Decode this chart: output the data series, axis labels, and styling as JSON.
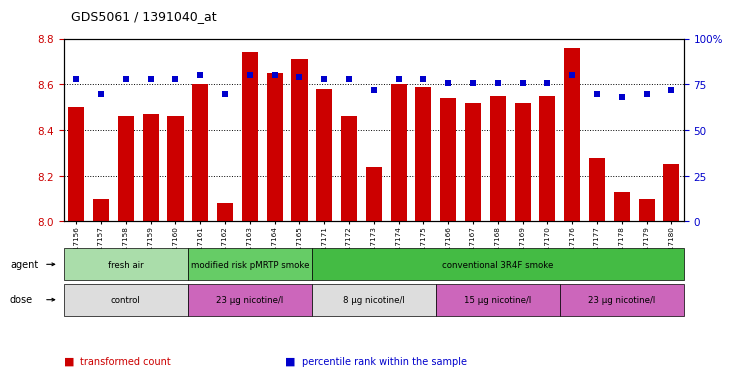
{
  "title": "GDS5061 / 1391040_at",
  "samples": [
    "GSM1217156",
    "GSM1217157",
    "GSM1217158",
    "GSM1217159",
    "GSM1217160",
    "GSM1217161",
    "GSM1217162",
    "GSM1217163",
    "GSM1217164",
    "GSM1217165",
    "GSM1217171",
    "GSM1217172",
    "GSM1217173",
    "GSM1217174",
    "GSM1217175",
    "GSM1217166",
    "GSM1217167",
    "GSM1217168",
    "GSM1217169",
    "GSM1217170",
    "GSM1217176",
    "GSM1217177",
    "GSM1217178",
    "GSM1217179",
    "GSM1217180"
  ],
  "bar_values": [
    8.5,
    8.1,
    8.46,
    8.47,
    8.46,
    8.6,
    8.08,
    8.74,
    8.65,
    8.71,
    8.58,
    8.46,
    8.24,
    8.6,
    8.59,
    8.54,
    8.52,
    8.55,
    8.52,
    8.55,
    8.76,
    8.28,
    8.13,
    8.1,
    8.25
  ],
  "percentile_values": [
    78,
    70,
    78,
    78,
    78,
    80,
    70,
    80,
    80,
    79,
    78,
    78,
    72,
    78,
    78,
    76,
    76,
    76,
    76,
    76,
    80,
    70,
    68,
    70,
    72
  ],
  "ylim_left": [
    8.0,
    8.8
  ],
  "ylim_right": [
    0,
    100
  ],
  "bar_color": "#cc0000",
  "dot_color": "#0000cc",
  "bg_color": "#ffffff",
  "title_color": "#000000",
  "left_tick_color": "#cc0000",
  "right_tick_color": "#0000cc",
  "agent_groups": [
    {
      "label": "fresh air",
      "start": 0,
      "end": 5,
      "color": "#aaddaa"
    },
    {
      "label": "modified risk pMRTP smoke",
      "start": 5,
      "end": 10,
      "color": "#66cc66"
    },
    {
      "label": "conventional 3R4F smoke",
      "start": 10,
      "end": 25,
      "color": "#44bb44"
    }
  ],
  "dose_groups": [
    {
      "label": "control",
      "start": 0,
      "end": 5,
      "color": "#dddddd"
    },
    {
      "label": "23 µg nicotine/l",
      "start": 5,
      "end": 10,
      "color": "#cc66bb"
    },
    {
      "label": "8 µg nicotine/l",
      "start": 10,
      "end": 15,
      "color": "#dddddd"
    },
    {
      "label": "15 µg nicotine/l",
      "start": 15,
      "end": 20,
      "color": "#cc66bb"
    },
    {
      "label": "23 µg nicotine/l",
      "start": 20,
      "end": 25,
      "color": "#cc66bb"
    }
  ],
  "legend_items": [
    {
      "label": "transformed count",
      "color": "#cc0000"
    },
    {
      "label": "percentile rank within the sample",
      "color": "#0000cc"
    }
  ],
  "left_ticks": [
    8.0,
    8.2,
    8.4,
    8.6,
    8.8
  ],
  "right_ticks": [
    0,
    25,
    50,
    75,
    100
  ]
}
